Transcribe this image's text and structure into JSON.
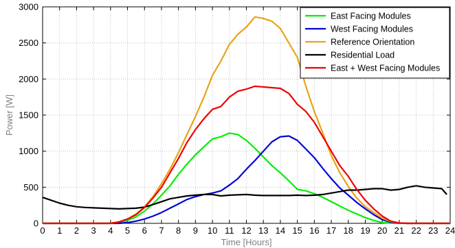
{
  "chart_data": {
    "type": "line",
    "title": "",
    "xlabel": "Time [Hours]",
    "ylabel": "Power [W]",
    "xlim": [
      0,
      24
    ],
    "ylim": [
      0,
      3000
    ],
    "xticks": [
      0,
      1,
      2,
      3,
      4,
      5,
      6,
      7,
      8,
      9,
      10,
      11,
      12,
      13,
      14,
      15,
      16,
      17,
      18,
      19,
      20,
      21,
      22,
      23,
      24
    ],
    "yticks": [
      0,
      500,
      1000,
      1500,
      2000,
      2500,
      3000
    ],
    "grid": true,
    "legend_position": "top-right",
    "series": [
      {
        "name": "East Facing Modules",
        "color": "#00ee00",
        "x": [
          0,
          3.8,
          4.5,
          5,
          5.5,
          6,
          6.5,
          7,
          7.5,
          8,
          8.5,
          9,
          9.5,
          10,
          10.5,
          11,
          11.5,
          12,
          12.5,
          13,
          13.5,
          14,
          14.5,
          15,
          15.5,
          16,
          16.5,
          17,
          17.5,
          18,
          18.5,
          19,
          19.5,
          20,
          20.5,
          21,
          24
        ],
        "y": [
          0,
          0,
          10,
          40,
          90,
          170,
          270,
          390,
          520,
          680,
          820,
          950,
          1060,
          1170,
          1200,
          1250,
          1230,
          1150,
          1040,
          920,
          800,
          700,
          590,
          470,
          450,
          410,
          360,
          300,
          240,
          180,
          130,
          80,
          40,
          10,
          3,
          0,
          0
        ]
      },
      {
        "name": "West Facing Modules",
        "color": "#0000dd",
        "x": [
          0,
          4.5,
          5,
          5.5,
          6,
          6.5,
          7,
          7.5,
          8,
          8.5,
          9,
          9.5,
          10,
          10.5,
          11,
          11.5,
          12,
          12.5,
          13,
          13.5,
          14,
          14.5,
          15,
          15.5,
          16,
          16.5,
          17,
          17.5,
          18,
          18.5,
          19,
          19.5,
          20,
          20.5,
          21,
          21.5,
          24
        ],
        "y": [
          0,
          0,
          10,
          30,
          60,
          100,
          150,
          210,
          270,
          330,
          370,
          400,
          420,
          450,
          530,
          620,
          750,
          870,
          1000,
          1130,
          1200,
          1210,
          1150,
          1030,
          910,
          760,
          620,
          490,
          390,
          290,
          200,
          120,
          50,
          15,
          3,
          0,
          0
        ]
      },
      {
        "name": "Reference Orientation",
        "color": "#e8a415",
        "x": [
          0,
          4,
          4.5,
          5,
          5.5,
          6,
          6.5,
          7,
          7.5,
          8,
          8.5,
          9,
          9.5,
          10,
          10.5,
          11,
          11.5,
          12,
          12.5,
          13,
          13.5,
          14,
          14.5,
          15,
          15.5,
          16,
          16.5,
          17,
          17.5,
          18,
          18.5,
          19,
          19.5,
          20,
          20.5,
          21,
          21.5,
          24
        ],
        "y": [
          0,
          0,
          20,
          60,
          130,
          230,
          370,
          550,
          750,
          980,
          1230,
          1480,
          1750,
          2050,
          2250,
          2480,
          2620,
          2720,
          2860,
          2840,
          2800,
          2700,
          2500,
          2300,
          1900,
          1550,
          1250,
          940,
          700,
          510,
          350,
          230,
          150,
          70,
          25,
          5,
          0,
          0
        ]
      },
      {
        "name": "Residential Load",
        "color": "#000000",
        "x": [
          0,
          0.5,
          1,
          1.5,
          2,
          2.5,
          3,
          3.5,
          4,
          4.5,
          5,
          5.5,
          6,
          6.5,
          7,
          7.5,
          8,
          8.5,
          9,
          9.5,
          10,
          10.5,
          11,
          11.5,
          12,
          12.5,
          13,
          13.5,
          14,
          14.5,
          15,
          15.5,
          16,
          16.5,
          17,
          17.5,
          18,
          18.5,
          19,
          19.5,
          20,
          20.5,
          21,
          21.5,
          22,
          22.5,
          23,
          23.5,
          23.8
        ],
        "y": [
          360,
          320,
          280,
          250,
          230,
          220,
          215,
          210,
          205,
          200,
          205,
          210,
          225,
          260,
          300,
          340,
          360,
          380,
          390,
          400,
          400,
          380,
          390,
          395,
          400,
          390,
          385,
          385,
          385,
          385,
          390,
          385,
          390,
          400,
          420,
          440,
          460,
          460,
          470,
          480,
          480,
          460,
          470,
          500,
          520,
          500,
          490,
          480,
          400
        ]
      },
      {
        "name": "East + West Facing Modules",
        "color": "#ee0000",
        "x": [
          0,
          4,
          4.5,
          5,
          5.5,
          6,
          6.5,
          7,
          7.5,
          8,
          8.5,
          9,
          9.5,
          10,
          10.5,
          11,
          11.5,
          12,
          12.5,
          13,
          13.5,
          14,
          14.5,
          15,
          15.5,
          16,
          16.5,
          17,
          17.5,
          18,
          18.5,
          19,
          19.5,
          20,
          20.5,
          21,
          21.5,
          24
        ],
        "y": [
          0,
          0,
          20,
          60,
          120,
          220,
          350,
          500,
          700,
          900,
          1120,
          1300,
          1450,
          1580,
          1620,
          1750,
          1830,
          1860,
          1900,
          1890,
          1880,
          1870,
          1800,
          1650,
          1550,
          1400,
          1200,
          1000,
          800,
          650,
          470,
          320,
          200,
          100,
          30,
          5,
          0,
          0
        ]
      }
    ]
  }
}
